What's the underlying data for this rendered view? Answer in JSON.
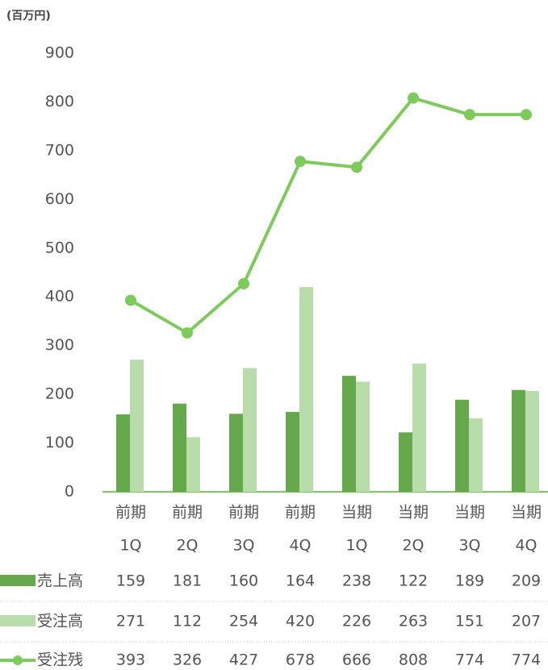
{
  "chart_data": {
    "type": "bar-line",
    "y_label": "(百万円)",
    "categories": [
      [
        "前期",
        "1Q"
      ],
      [
        "前期",
        "2Q"
      ],
      [
        "前期",
        "3Q"
      ],
      [
        "前期",
        "4Q"
      ],
      [
        "当期",
        "1Q"
      ],
      [
        "当期",
        "2Q"
      ],
      [
        "当期",
        "3Q"
      ],
      [
        "当期",
        "4Q"
      ]
    ],
    "series": [
      {
        "name": "売上高",
        "type": "bar",
        "color": "#66a84c",
        "values": [
          159,
          181,
          160,
          164,
          238,
          122,
          189,
          209
        ]
      },
      {
        "name": "受注高",
        "type": "bar",
        "color": "#b9dcab",
        "values": [
          271,
          112,
          254,
          420,
          226,
          263,
          151,
          207
        ]
      },
      {
        "name": "受注残",
        "type": "line",
        "color": "#7ccb5b",
        "values": [
          393,
          326,
          427,
          678,
          666,
          808,
          774,
          774
        ]
      }
    ],
    "ylim": [
      0,
      900
    ],
    "yticks": [
      0,
      100,
      200,
      300,
      400,
      500,
      600,
      700,
      800,
      900
    ]
  }
}
